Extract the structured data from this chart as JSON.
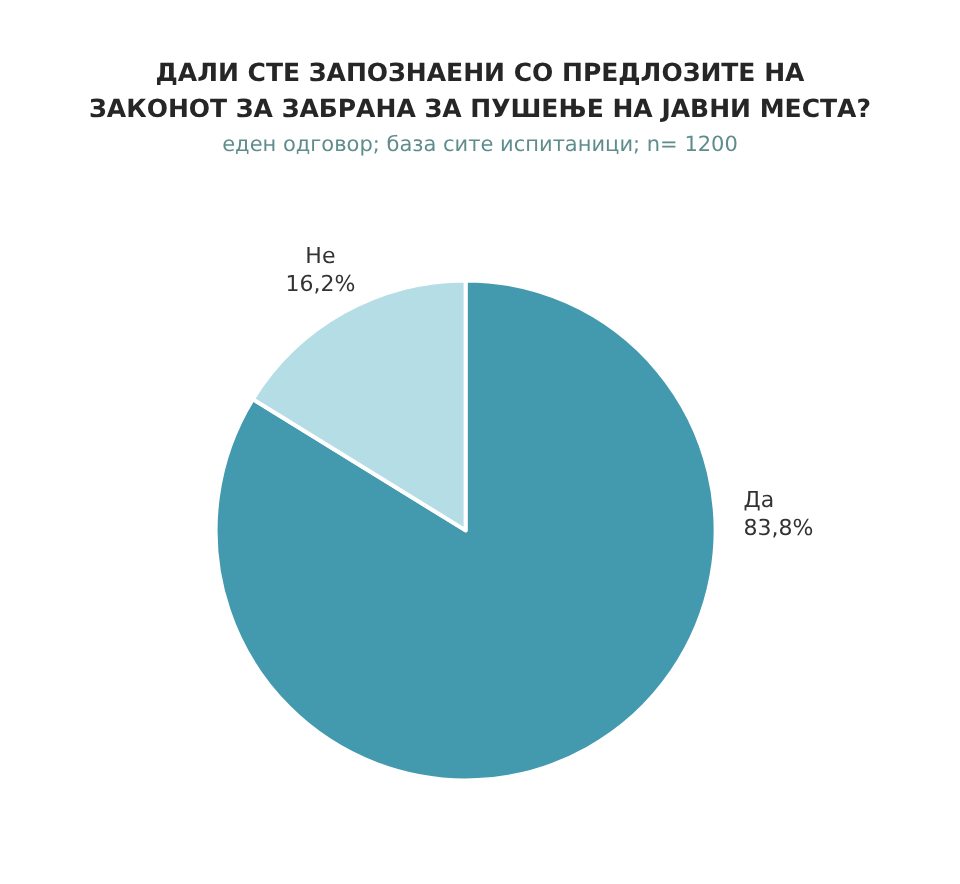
{
  "chart_data": {
    "type": "pie",
    "title": "ДАЛИ СТЕ ЗАПОЗНАЕНИ СО ПРЕДЛОЗИТЕ НА\nЗАКОНОТ ЗА ЗАБРАНА ЗА ПУШЕЊЕ НА ЈАВНИ МЕСТА?",
    "subtitle": "еден одговор; база сите испитаници; n= 1200",
    "categories": [
      "Да",
      "Не"
    ],
    "values": [
      83.8,
      16.2
    ],
    "colors": [
      "#4399ad",
      "#b5dde6"
    ],
    "value_labels": [
      "83,8%",
      "16,2%"
    ],
    "legend": false
  }
}
